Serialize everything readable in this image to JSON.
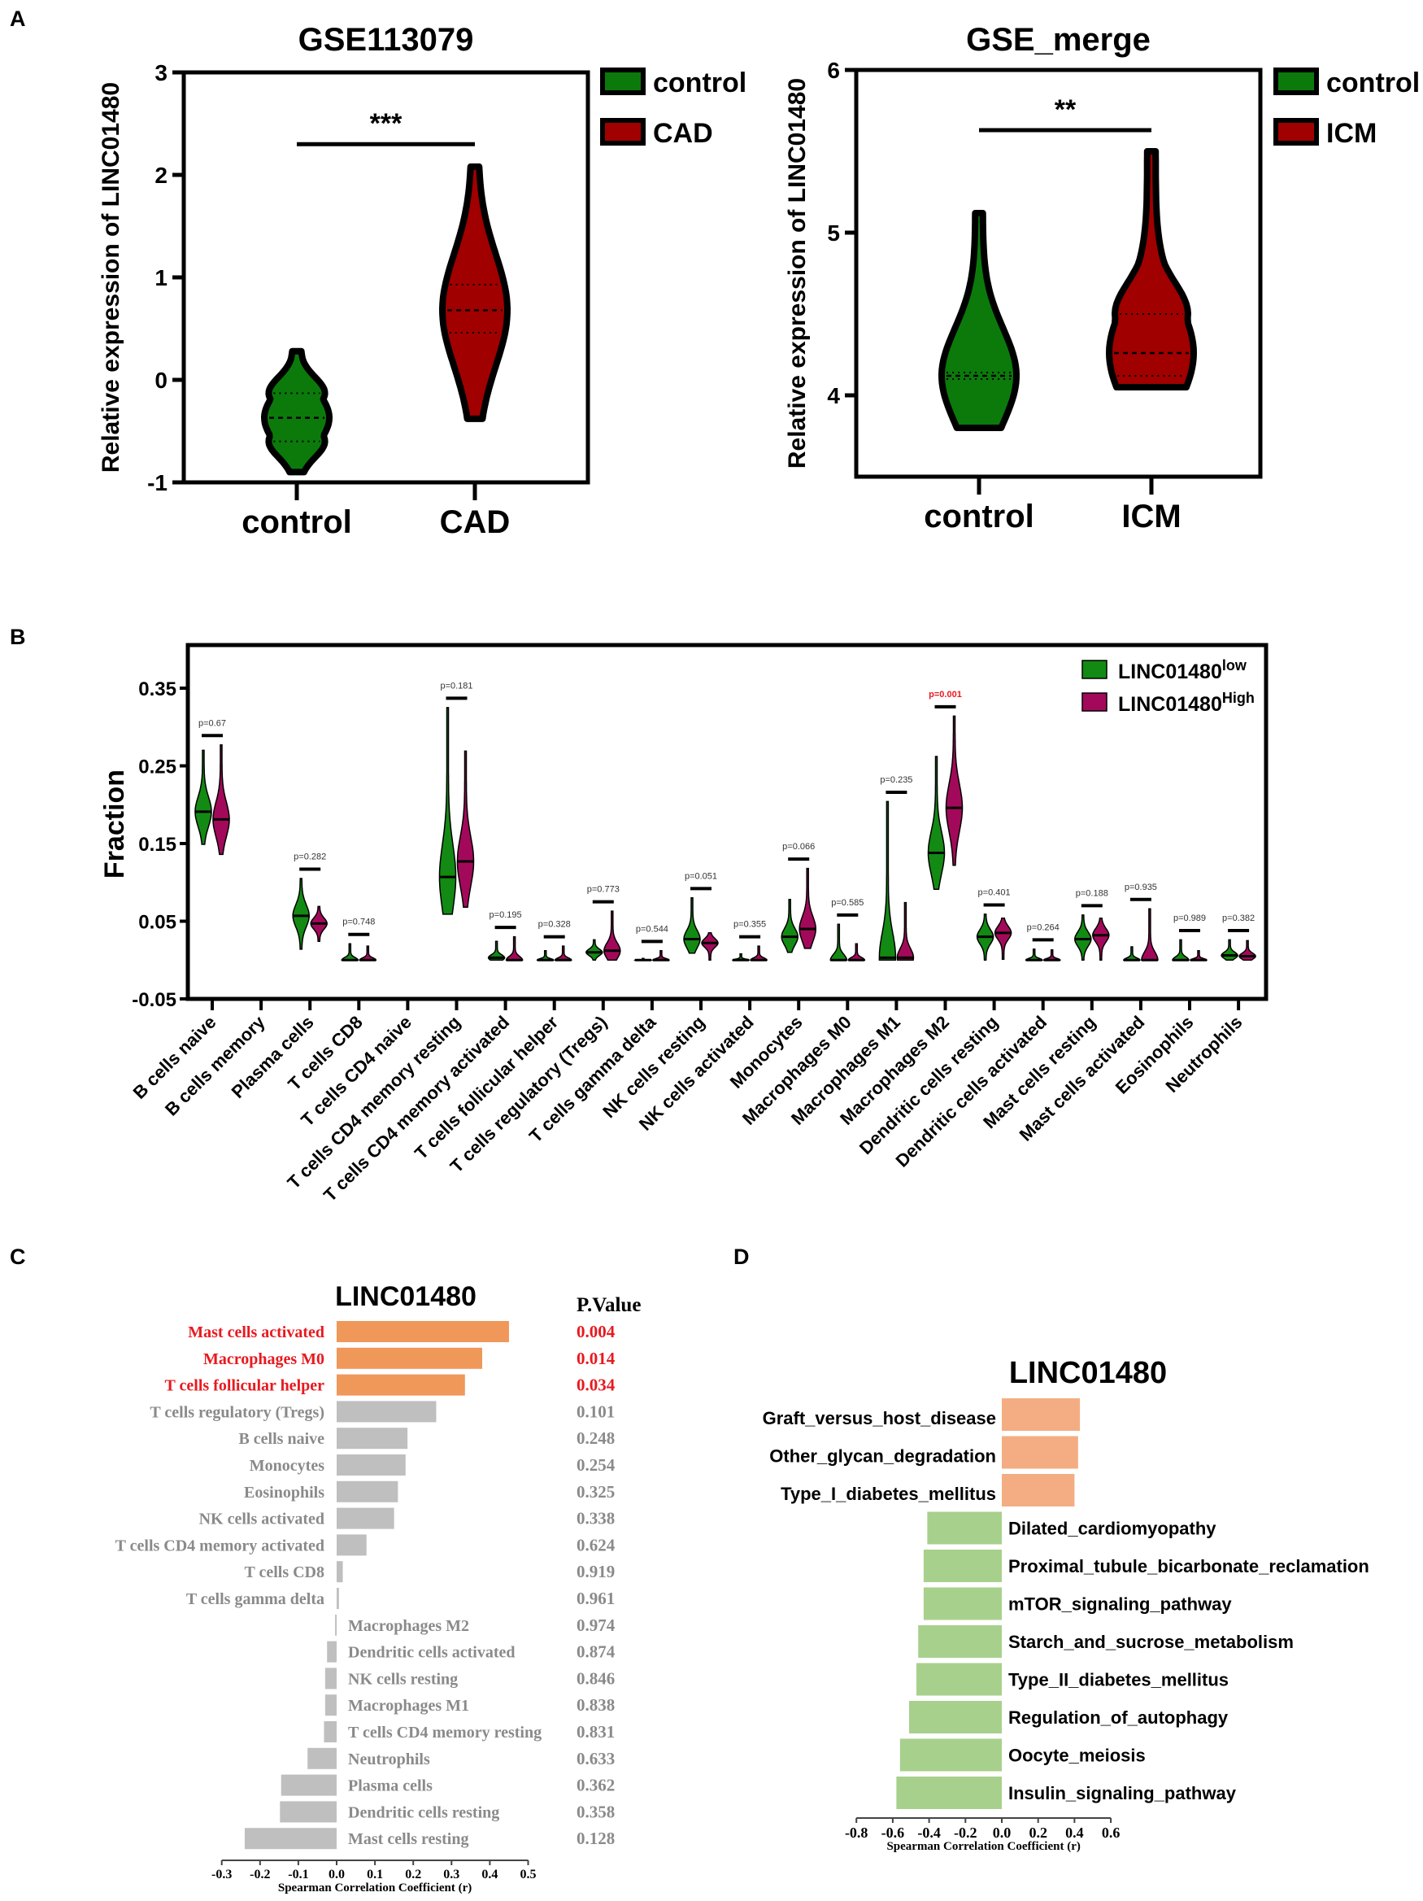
{
  "panel_labels": {
    "a": "A",
    "b": "B",
    "c": "C",
    "d": "D"
  },
  "colors": {
    "a_control": "#0b7a0b",
    "a_case": "#a00000",
    "b_low": "#138a13",
    "b_high": "#a3095a",
    "c_sig_bar": "#f0975a",
    "c_bar": "#bfbfbf",
    "c_sig_text": "#e8191f",
    "c_text": "#8a8a8a",
    "d_pos": "#f4ad82",
    "d_neg": "#a8d08d"
  },
  "chart_data": [
    {
      "id": "A1",
      "type": "violin",
      "title": "GSE113079",
      "ylabel": "Relative expression of LINC01480",
      "ylim": [
        -1,
        3
      ],
      "yticks": [
        "-1",
        "0",
        "1",
        "2",
        "3"
      ],
      "categories": [
        "control",
        "CAD"
      ],
      "legend": [
        "control",
        "CAD"
      ],
      "significance": "***",
      "series": [
        {
          "name": "control",
          "min": -0.9,
          "q1": -0.6,
          "median": -0.37,
          "q3": -0.13,
          "max": 0.28
        },
        {
          "name": "CAD",
          "min": -0.38,
          "q1": 0.46,
          "median": 0.68,
          "q3": 0.93,
          "max": 2.08
        }
      ]
    },
    {
      "id": "A2",
      "type": "violin",
      "title": "GSE_merge",
      "ylabel": "Relative expression of LINC01480",
      "ylim": [
        3.5,
        6
      ],
      "yticks": [
        "4",
        "5",
        "6"
      ],
      "categories": [
        "control",
        "ICM"
      ],
      "legend": [
        "control",
        "ICM"
      ],
      "significance": "**",
      "series": [
        {
          "name": "control",
          "min": 3.8,
          "q1": 4.1,
          "median": 4.12,
          "q3": 4.14,
          "max": 5.12
        },
        {
          "name": "ICM",
          "min": 4.05,
          "q1": 4.12,
          "median": 4.26,
          "q3": 4.5,
          "max": 5.5
        }
      ]
    },
    {
      "id": "B",
      "type": "violin",
      "ylabel": "Fraction",
      "ylim": [
        -0.05,
        0.4
      ],
      "yticks": [
        "-0.05",
        "0.05",
        "0.15",
        "0.25",
        "0.35"
      ],
      "legend": {
        "base": "LINC01480",
        "low_sup": "low",
        "high_sup": "High"
      },
      "groups": [
        {
          "name": "B cells naive",
          "p": "p=0.67",
          "sig": false,
          "low": {
            "min": 0.149,
            "median": 0.191,
            "max": 0.27
          },
          "high": {
            "min": 0.136,
            "median": 0.181,
            "max": 0.277
          }
        },
        {
          "name": "B cells memory",
          "p": "",
          "sig": false,
          "low": null,
          "high": null
        },
        {
          "name": "Plasma cells",
          "p": "p=0.282",
          "sig": false,
          "low": {
            "min": 0.014,
            "median": 0.057,
            "max": 0.105
          },
          "high": {
            "min": 0.024,
            "median": 0.047,
            "max": 0.069
          }
        },
        {
          "name": "T cells CD8",
          "p": "p=0.748",
          "sig": false,
          "low": {
            "min": 0,
            "median": 0,
            "max": 0.021
          },
          "high": {
            "min": 0,
            "median": 0,
            "max": 0.018
          }
        },
        {
          "name": "T cells CD4 naive",
          "p": "",
          "sig": false,
          "low": null,
          "high": null
        },
        {
          "name": "T cells CD4 memory resting",
          "p": "p=0.181",
          "sig": false,
          "low": {
            "min": 0.059,
            "median": 0.107,
            "max": 0.325
          },
          "high": {
            "min": 0.068,
            "median": 0.127,
            "max": 0.269
          }
        },
        {
          "name": "T cells CD4 memory activated",
          "p": "p=0.195",
          "sig": false,
          "low": {
            "min": 0,
            "median": 0.003,
            "max": 0.024
          },
          "high": {
            "min": 0,
            "median": 0,
            "max": 0.03
          }
        },
        {
          "name": "T cells follicular helper",
          "p": "p=0.328",
          "sig": false,
          "low": {
            "min": 0,
            "median": 0,
            "max": 0.012
          },
          "high": {
            "min": 0,
            "median": 0,
            "max": 0.018
          }
        },
        {
          "name": "T cells regulatory (Tregs)",
          "p": "p=0.773",
          "sig": false,
          "low": {
            "min": 0,
            "median": 0.01,
            "max": 0.026
          },
          "high": {
            "min": 0,
            "median": 0.012,
            "max": 0.063
          }
        },
        {
          "name": "T cells gamma delta",
          "p": "p=0.544",
          "sig": false,
          "low": {
            "min": 0,
            "median": 0,
            "max": 0.002
          },
          "high": {
            "min": 0,
            "median": 0,
            "max": 0.012
          }
        },
        {
          "name": "NK cells resting",
          "p": "p=0.051",
          "sig": false,
          "low": {
            "min": 0.009,
            "median": 0.027,
            "max": 0.08
          },
          "high": {
            "min": 0,
            "median": 0.022,
            "max": 0.035
          }
        },
        {
          "name": "NK cells activated",
          "p": "p=0.355",
          "sig": false,
          "low": {
            "min": 0,
            "median": 0,
            "max": 0.008
          },
          "high": {
            "min": 0,
            "median": 0,
            "max": 0.018
          }
        },
        {
          "name": "Monocytes",
          "p": "p=0.066",
          "sig": false,
          "low": {
            "min": 0.01,
            "median": 0.03,
            "max": 0.078
          },
          "high": {
            "min": 0.015,
            "median": 0.04,
            "max": 0.118
          }
        },
        {
          "name": "Macrophages M0",
          "p": "p=0.585",
          "sig": false,
          "low": {
            "min": 0,
            "median": 0,
            "max": 0.046
          },
          "high": {
            "min": 0,
            "median": 0,
            "max": 0.021
          }
        },
        {
          "name": "Macrophages M1",
          "p": "p=0.235",
          "sig": false,
          "low": {
            "min": 0,
            "median": 0.003,
            "max": 0.204
          },
          "high": {
            "min": 0,
            "median": 0.003,
            "max": 0.074
          }
        },
        {
          "name": "Macrophages M2",
          "p": "p=0.001",
          "sig": true,
          "low": {
            "min": 0.091,
            "median": 0.138,
            "max": 0.262
          },
          "high": {
            "min": 0.122,
            "median": 0.196,
            "max": 0.314
          }
        },
        {
          "name": "Dendritic cells resting",
          "p": "p=0.401",
          "sig": false,
          "low": {
            "min": 0,
            "median": 0.03,
            "max": 0.059
          },
          "high": {
            "min": 0.001,
            "median": 0.035,
            "max": 0.054
          }
        },
        {
          "name": "Dendritic cells activated",
          "p": "p=0.264",
          "sig": false,
          "low": {
            "min": 0,
            "median": 0,
            "max": 0.014
          },
          "high": {
            "min": 0,
            "median": 0,
            "max": 0.013
          }
        },
        {
          "name": "Mast cells resting",
          "p": "p=0.188",
          "sig": false,
          "low": {
            "min": 0,
            "median": 0.027,
            "max": 0.058
          },
          "high": {
            "min": 0,
            "median": 0.032,
            "max": 0.054
          }
        },
        {
          "name": "Mast cells activated",
          "p": "p=0.935",
          "sig": false,
          "low": {
            "min": 0,
            "median": 0,
            "max": 0.017
          },
          "high": {
            "min": 0,
            "median": 0,
            "max": 0.066
          }
        },
        {
          "name": "Eosinophils",
          "p": "p=0.989",
          "sig": false,
          "low": {
            "min": 0,
            "median": 0,
            "max": 0.026
          },
          "high": {
            "min": 0,
            "median": 0,
            "max": 0.012
          }
        },
        {
          "name": "Neutrophils",
          "p": "p=0.382",
          "sig": false,
          "low": {
            "min": 0,
            "median": 0.006,
            "max": 0.026
          },
          "high": {
            "min": 0,
            "median": 0.005,
            "max": 0.025
          }
        }
      ]
    },
    {
      "id": "C",
      "type": "bar",
      "orientation": "horizontal",
      "title": "LINC01480",
      "pvalue_header": "P.Value",
      "xlabel": "Spearman Correlation Coefficient (r)",
      "xlim": [
        -0.3,
        0.5
      ],
      "xticks": [
        "-0.3",
        "-0.2",
        "-0.1",
        "0.0",
        "0.1",
        "0.2",
        "0.3",
        "0.4",
        "0.5"
      ],
      "rows": [
        {
          "name": "Mast cells activated",
          "r": 0.45,
          "p": "0.004",
          "sig": true
        },
        {
          "name": "Macrophages M0",
          "r": 0.38,
          "p": "0.014",
          "sig": true
        },
        {
          "name": "T cells follicular helper",
          "r": 0.335,
          "p": "0.034",
          "sig": true
        },
        {
          "name": "T cells regulatory (Tregs)",
          "r": 0.26,
          "p": "0.101",
          "sig": false
        },
        {
          "name": "B cells naive",
          "r": 0.185,
          "p": "0.248",
          "sig": false
        },
        {
          "name": "Monocytes",
          "r": 0.18,
          "p": "0.254",
          "sig": false
        },
        {
          "name": "Eosinophils",
          "r": 0.16,
          "p": "0.325",
          "sig": false
        },
        {
          "name": "NK cells activated",
          "r": 0.15,
          "p": "0.338",
          "sig": false
        },
        {
          "name": "T cells CD4 memory activated",
          "r": 0.078,
          "p": "0.624",
          "sig": false
        },
        {
          "name": "T cells CD8",
          "r": 0.016,
          "p": "0.919",
          "sig": false
        },
        {
          "name": "T cells gamma delta",
          "r": 0.006,
          "p": "0.961",
          "sig": false
        },
        {
          "name": "Macrophages M2",
          "r": -0.004,
          "p": "0.974",
          "sig": false
        },
        {
          "name": "Dendritic cells activated",
          "r": -0.025,
          "p": "0.874",
          "sig": false
        },
        {
          "name": "NK cells resting",
          "r": -0.03,
          "p": "0.846",
          "sig": false
        },
        {
          "name": "Macrophages M1",
          "r": -0.03,
          "p": "0.838",
          "sig": false
        },
        {
          "name": "T cells CD4 memory resting",
          "r": -0.033,
          "p": "0.831",
          "sig": false
        },
        {
          "name": "Neutrophils",
          "r": -0.076,
          "p": "0.633",
          "sig": false
        },
        {
          "name": "Plasma cells",
          "r": -0.145,
          "p": "0.362",
          "sig": false
        },
        {
          "name": "Dendritic cells resting",
          "r": -0.148,
          "p": "0.358",
          "sig": false
        },
        {
          "name": "Mast cells resting",
          "r": -0.24,
          "p": "0.128",
          "sig": false
        }
      ]
    },
    {
      "id": "D",
      "type": "bar",
      "orientation": "horizontal",
      "title": "LINC01480",
      "xlabel": "Spearman Correlation Coefficient (r)",
      "xlim": [
        -0.8,
        0.6
      ],
      "xticks": [
        "-0.8",
        "-0.6",
        "-0.4",
        "-0.2",
        "0.0",
        "0.2",
        "0.4",
        "0.6"
      ],
      "rows": [
        {
          "name": "Graft_versus_host_disease",
          "r": 0.43
        },
        {
          "name": "Other_glycan_degradation",
          "r": 0.42
        },
        {
          "name": "Type_I_diabetes_mellitus",
          "r": 0.4
        },
        {
          "name": "Dilated_cardiomyopathy",
          "r": -0.41
        },
        {
          "name": "Proximal_tubule_bicarbonate_reclamation",
          "r": -0.43
        },
        {
          "name": "mTOR_signaling_pathway",
          "r": -0.43
        },
        {
          "name": "Starch_and_sucrose_metabolism",
          "r": -0.46
        },
        {
          "name": "Type_II_diabetes_mellitus",
          "r": -0.47
        },
        {
          "name": "Regulation_of_autophagy",
          "r": -0.51
        },
        {
          "name": "Oocyte_meiosis",
          "r": -0.56
        },
        {
          "name": "Insulin_signaling_pathway",
          "r": -0.58
        }
      ]
    }
  ]
}
